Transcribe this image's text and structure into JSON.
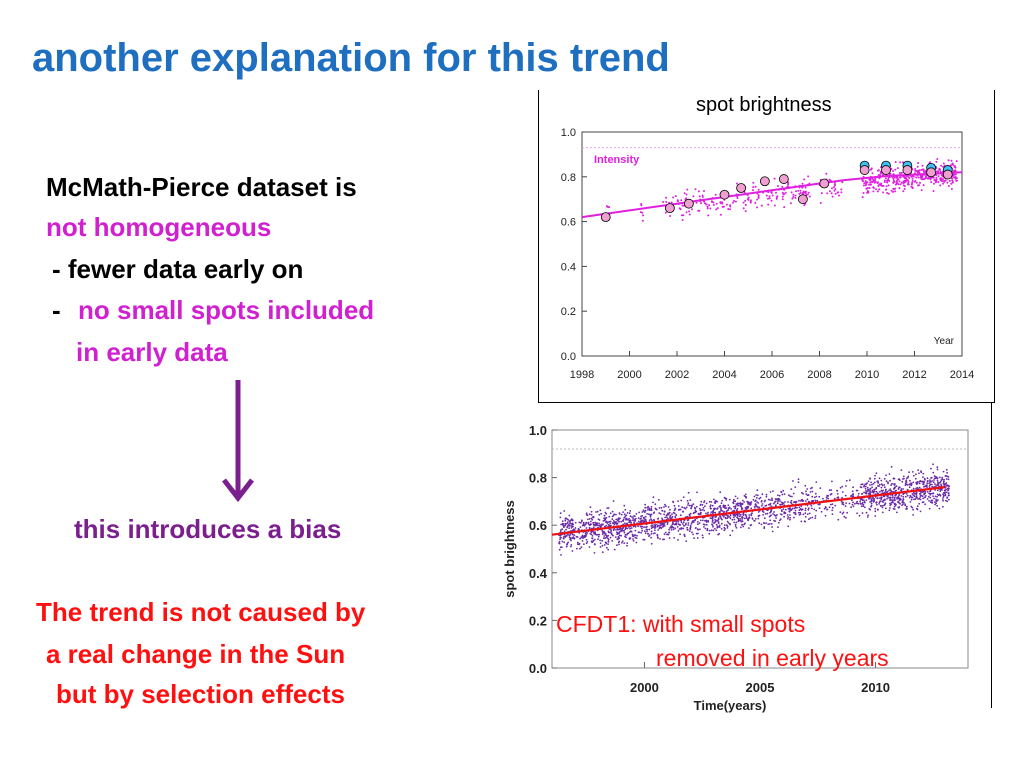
{
  "slide": {
    "title": "another explanation for this trend",
    "text": {
      "line1": "McMath-Pierce dataset is",
      "line2": "not homogeneous",
      "line3": " - fewer data early on",
      "line4_dash": " -",
      "line4_text": "no small spots included",
      "line5": "in early data",
      "bias": "this introduces a bias",
      "conclusion1": "The trend is not caused by",
      "conclusion2": "a real change in the Sun",
      "conclusion3": "but by selection effects"
    },
    "colors": {
      "title": "#1f6fc0",
      "magenta": "#d020d0",
      "purple": "#7b1e8e",
      "red": "#ff1010"
    }
  },
  "chart_data": [
    {
      "type": "scatter",
      "title": "spot brightness",
      "annotation": "Intensity",
      "xlabel": "Year",
      "ylabel": "",
      "xlim": [
        1998,
        2014
      ],
      "ylim": [
        0.0,
        1.0
      ],
      "xticks": [
        "1998",
        "2000",
        "2002",
        "2004",
        "2006",
        "2008",
        "2010",
        "2012",
        "2014"
      ],
      "yticks": [
        "0.0",
        "0.2",
        "0.4",
        "0.6",
        "0.8",
        "1.0"
      ],
      "trend": {
        "x": [
          1998,
          1999,
          2000,
          2001,
          2002,
          2003,
          2004,
          2005,
          2006,
          2007,
          2008,
          2009,
          2010,
          2011,
          2012,
          2013,
          2014
        ],
        "y": [
          0.62,
          0.635,
          0.65,
          0.665,
          0.68,
          0.695,
          0.71,
          0.725,
          0.74,
          0.755,
          0.77,
          0.785,
          0.795,
          0.805,
          0.81,
          0.815,
          0.82
        ]
      },
      "yearly_means": {
        "x": [
          1999,
          2001.7,
          2002.5,
          2004,
          2004.7,
          2005.7,
          2006.5,
          2007.3,
          2008.2,
          2009.9,
          2010.8,
          2011.7,
          2012.7,
          2013.4
        ],
        "y": [
          0.62,
          0.66,
          0.68,
          0.72,
          0.75,
          0.78,
          0.79,
          0.7,
          0.77,
          0.83,
          0.83,
          0.83,
          0.82,
          0.81
        ]
      },
      "points_color": "#e020e0"
    },
    {
      "type": "scatter",
      "title": "",
      "annotation": "CFDT1: with small spots removed in early years",
      "annotation_line1": "CFDT1: with small spots",
      "annotation_line2": "removed in early years",
      "xlabel": "Time(years)",
      "ylabel": "spot brightness",
      "xlim": [
        1996,
        2014
      ],
      "ylim": [
        0.0,
        1.0
      ],
      "xticks": [
        "2000",
        "2005",
        "2010"
      ],
      "yticks": [
        "0.0",
        "0.2",
        "0.4",
        "0.6",
        "0.8",
        "1.0"
      ],
      "trend": {
        "x": [
          1996,
          2013
        ],
        "y": [
          0.56,
          0.76
        ]
      },
      "points_color": "#6a2aa8",
      "trend_color": "#ee1111"
    }
  ]
}
